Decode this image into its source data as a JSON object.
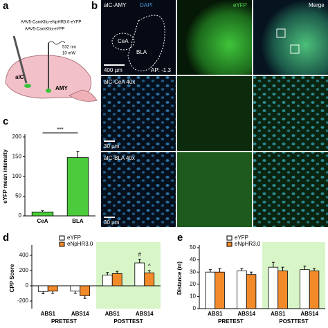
{
  "panels": [
    "a",
    "b",
    "c",
    "d",
    "e"
  ],
  "diagram": {
    "virus1": "AAV5-CamKIIα-eNpHR3.0-eYFP",
    "virus2": "AAV5-CamKIIα-eYFP",
    "laser_wavelength": "532 nm",
    "laser_power": "10 mW",
    "region1": "aIC",
    "region2": "AMY"
  },
  "images": {
    "row1": "aIC-AMY",
    "col1": "DAPI",
    "col2": "eYFP",
    "col3": "Merge",
    "cea": "CeA",
    "bla": "BLA",
    "scale1": "400 µm",
    "ap": "AP: -1.3",
    "row2": "aIC-CeA 40x",
    "scale2": "30 µm",
    "row3": "aIC-BLA 40x",
    "scale3": "30 µm"
  },
  "chart_data": [
    {
      "type": "bar",
      "ylabel": "eYFP mean intensity",
      "categories": [
        "CeA",
        "BLA"
      ],
      "series": [
        {
          "color": "#4ccc3c",
          "values": [
            10,
            148
          ],
          "errors": [
            3,
            16
          ]
        }
      ],
      "ylim": [
        0,
        200
      ],
      "yticks": [
        0,
        50,
        100,
        150,
        200
      ],
      "annotations": [
        "***"
      ]
    },
    {
      "type": "bar",
      "ylabel": "CPP Score",
      "categories": [
        "ABS1",
        "ABS14",
        "ABS1",
        "ABS14"
      ],
      "group_labels": [
        "PRETEST",
        "POSTTEST"
      ],
      "shade_color": "#d8f5c8",
      "series": [
        {
          "name": "eYFP",
          "color": "#ffffff",
          "values": [
            -75,
            -70,
            140,
            300
          ],
          "errors": [
            30,
            30,
            35,
            50
          ]
        },
        {
          "name": "eNpHR3.0",
          "color": "#f28a2a",
          "values": [
            -70,
            -130,
            160,
            170
          ],
          "errors": [
            30,
            35,
            30,
            30
          ]
        }
      ],
      "ylim": [
        -300,
        500
      ],
      "yticks": [
        -200,
        0,
        200,
        400
      ],
      "annotations": [
        "#",
        "^"
      ]
    },
    {
      "type": "bar",
      "ylabel": "Distance (m)",
      "categories": [
        "ABS1",
        "ABS14",
        "ABS1",
        "ABS14"
      ],
      "group_labels": [
        "PRETEST",
        "POSTTEST"
      ],
      "shade_color": "#d8f5c8",
      "series": [
        {
          "name": "eYFP",
          "color": "#ffffff",
          "values": [
            30,
            31,
            34,
            32
          ],
          "errors": [
            2,
            2,
            4,
            3
          ]
        },
        {
          "name": "eNpHR3.0",
          "color": "#f28a2a",
          "values": [
            30,
            28,
            31,
            31
          ],
          "errors": [
            3,
            2,
            3,
            2
          ]
        }
      ],
      "ylim": [
        0,
        50
      ],
      "yticks": [
        0,
        10,
        20,
        30,
        40,
        50
      ]
    }
  ]
}
